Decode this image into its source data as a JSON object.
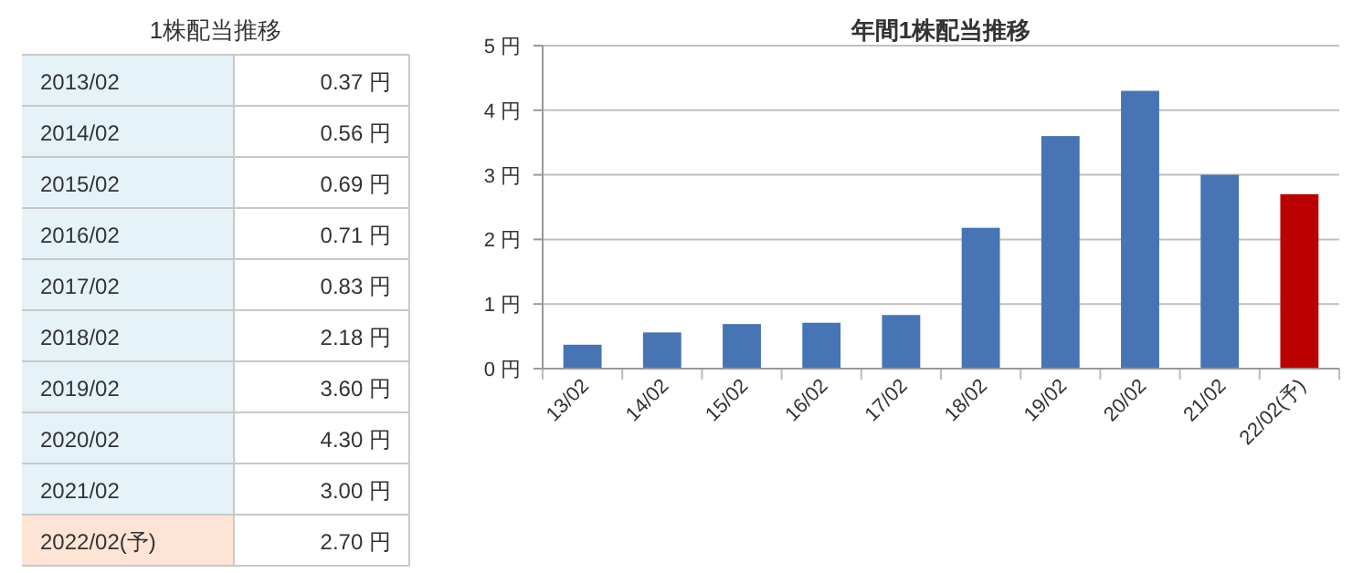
{
  "chart_data": [
    {
      "type": "other",
      "title": "1株配当推移",
      "annotations": [
        "2013/02",
        "0.37 円",
        "2014/02",
        "0.56 円",
        "2015/02",
        "0.69 円",
        "2016/02",
        "0.71 円",
        "2017/02",
        "0.83 円",
        "2018/02",
        "2.18 円",
        "2019/02",
        "3.60 円",
        "2020/02",
        "4.30 円",
        "2021/02",
        "3.00 円",
        "2022/02(予)",
        "2.70 円"
      ]
    },
    {
      "type": "bar",
      "title": "年間1株配当推移",
      "categories": [
        "13/02",
        "14/02",
        "15/02",
        "16/02",
        "17/02",
        "18/02",
        "19/02",
        "20/02",
        "21/02",
        "22/02(予)"
      ],
      "values": [
        0.37,
        0.56,
        0.69,
        0.71,
        0.83,
        2.18,
        3.6,
        4.3,
        3.0,
        2.7
      ],
      "colors": [
        "#4674b5",
        "#4674b5",
        "#4674b5",
        "#4674b5",
        "#4674b5",
        "#4674b5",
        "#4674b5",
        "#4674b5",
        "#4674b5",
        "#bb0000"
      ],
      "ylim": [
        0,
        5
      ],
      "yticks": [
        {
          "value": 0,
          "label": "0 円"
        },
        {
          "value": 1,
          "label": "1 円"
        },
        {
          "value": 2,
          "label": "2 円"
        },
        {
          "value": 3,
          "label": "3 円"
        },
        {
          "value": 4,
          "label": "4 円"
        },
        {
          "value": 5,
          "label": "5 円"
        }
      ],
      "grid": "y"
    }
  ]
}
